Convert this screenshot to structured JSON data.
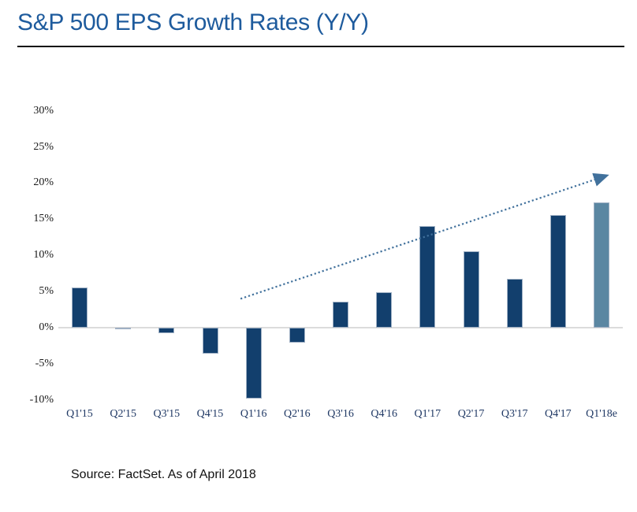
{
  "title": "S&P 500 EPS Growth Rates (Y/Y)",
  "source_note": "Source: FactSet. As of April 2018",
  "colors": {
    "title_text": "#1e5b9d",
    "bar_actual": "#123f6d",
    "bar_estimate": "#5b87a2",
    "bar_border": "#9fb0c4",
    "zero_axis_line": "#dcdcdc",
    "trend_arrow": "#41719c",
    "x_label_text": "#1f3864",
    "y_label_text": "#1a1a1a"
  },
  "chart_data": {
    "type": "bar",
    "title": "S&P 500 EPS Growth Rates (Y/Y)",
    "categories": [
      "Q1'15",
      "Q2'15",
      "Q3'15",
      "Q4'15",
      "Q1'16",
      "Q2'16",
      "Q3'16",
      "Q4'16",
      "Q1'17",
      "Q2'17",
      "Q3'17",
      "Q4'17",
      "Q1'18e"
    ],
    "values": [
      5.6,
      -0.2,
      -0.8,
      -3.6,
      -9.8,
      -2.1,
      3.6,
      4.9,
      14.0,
      10.6,
      6.8,
      15.6,
      17.3
    ],
    "estimate_index": 12,
    "xlabel": "",
    "ylabel": "",
    "ylim": [
      -10,
      30
    ],
    "ytick_labels": [
      "30%",
      "25%",
      "20%",
      "15%",
      "10%",
      "5%",
      "0%",
      "-5%",
      "-10%"
    ],
    "ytick_values": [
      30,
      25,
      20,
      15,
      10,
      5,
      0,
      -5,
      -10
    ],
    "grid": false,
    "legend": "none",
    "trend_arrow": {
      "x1_index": 3.7,
      "y1_value": 4.0,
      "x2_index": 12.1,
      "y2_value": 21.0
    }
  }
}
